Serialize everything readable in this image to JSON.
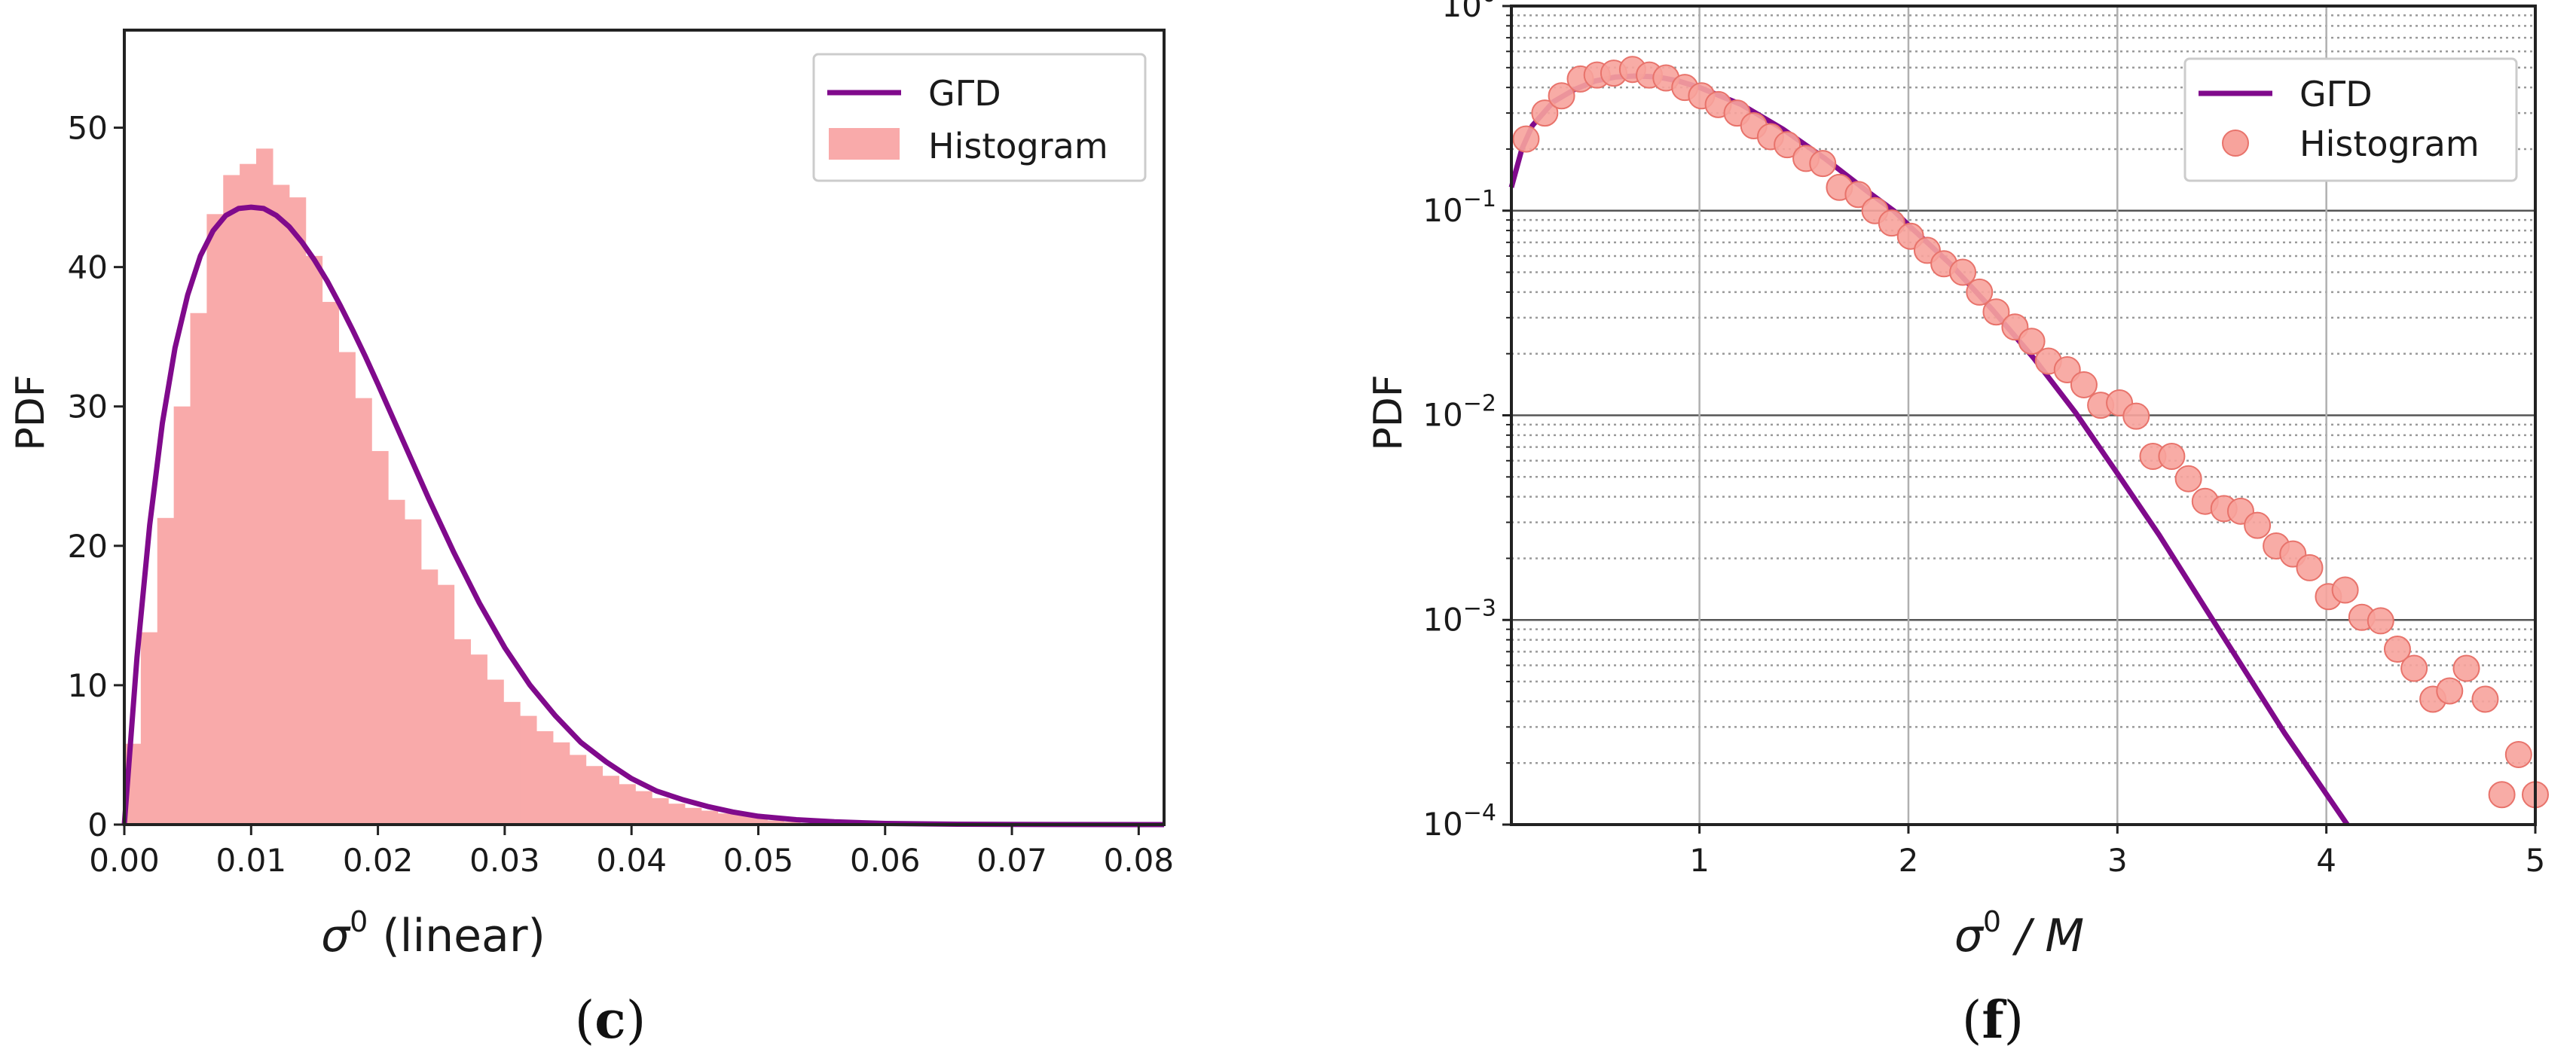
{
  "panels": {
    "left": {
      "label": "c",
      "ylabel": "PDF",
      "xlabel_symbol": "σ",
      "xlabel_sup": "0",
      "xlabel_rest": " (linear)",
      "yticks": [
        "0",
        "10",
        "20",
        "30",
        "40",
        "50"
      ],
      "xticks": [
        "0.00",
        "0.01",
        "0.02",
        "0.03",
        "0.04",
        "0.05",
        "0.06",
        "0.07",
        "0.08"
      ],
      "legend": {
        "line": "GΓD",
        "patch": "Histogram"
      }
    },
    "right": {
      "label": "f",
      "ylabel": "PDF",
      "xlabel_symbol": "σ",
      "xlabel_sup": "0",
      "xlabel_rest": " / M",
      "yticks_base": "10",
      "yticks_exp": [
        "0",
        "−1",
        "−2",
        "−3",
        "−4"
      ],
      "xticks": [
        "1",
        "2",
        "3",
        "4",
        "5"
      ],
      "legend": {
        "line": "GΓD",
        "marker": "Histogram"
      }
    }
  },
  "colors": {
    "curve": "#800a8c",
    "histogram_fill": "#f9aaaa",
    "marker_fill": "#f7a39c",
    "marker_edge": "#e8736b",
    "axis": "#222222",
    "grid_major": "#b0b0b0",
    "grid_minor": "#9a9a9a"
  },
  "chart_data": [
    {
      "type": "bar",
      "title": "(c)",
      "xlabel": "σ0 (linear)",
      "ylabel": "PDF",
      "xlim": [
        0.0,
        0.082
      ],
      "ylim": [
        0,
        57
      ],
      "grid": false,
      "legend_position": "upper right",
      "bin_width": 0.0013,
      "bin_start": 0.0,
      "histogram_values": [
        5.8,
        13.8,
        22.0,
        30.0,
        36.7,
        43.8,
        46.6,
        47.4,
        48.5,
        45.9,
        45.0,
        40.8,
        37.5,
        33.9,
        30.6,
        26.8,
        23.3,
        21.9,
        18.3,
        17.2,
        13.3,
        12.2,
        10.4,
        8.8,
        7.8,
        6.7,
        5.9,
        5.0,
        4.2,
        3.5,
        2.9,
        2.4,
        1.9,
        1.5,
        1.2,
        1.0,
        0.8,
        0.7,
        0.5,
        0.3,
        0.2,
        0.1,
        0.05
      ],
      "series": [
        {
          "name": "GΓD",
          "kind": "line",
          "x": [
            0.0,
            0.001,
            0.002,
            0.003,
            0.004,
            0.005,
            0.006,
            0.007,
            0.008,
            0.009,
            0.01,
            0.011,
            0.012,
            0.013,
            0.014,
            0.015,
            0.016,
            0.017,
            0.018,
            0.019,
            0.02,
            0.022,
            0.024,
            0.026,
            0.028,
            0.03,
            0.032,
            0.034,
            0.036,
            0.038,
            0.04,
            0.042,
            0.044,
            0.046,
            0.048,
            0.05,
            0.053,
            0.056,
            0.06,
            0.065,
            0.07,
            0.082
          ],
          "y": [
            0.0,
            12.0,
            21.5,
            28.8,
            34.2,
            38.0,
            40.8,
            42.6,
            43.7,
            44.2,
            44.3,
            44.2,
            43.7,
            42.9,
            41.8,
            40.5,
            39.0,
            37.3,
            35.5,
            33.6,
            31.6,
            27.5,
            23.4,
            19.5,
            15.9,
            12.7,
            10.0,
            7.8,
            5.9,
            4.5,
            3.3,
            2.4,
            1.8,
            1.3,
            0.9,
            0.6,
            0.35,
            0.2,
            0.08,
            0.03,
            0.01,
            0.0
          ]
        },
        {
          "name": "Histogram",
          "kind": "bar"
        }
      ]
    },
    {
      "type": "scatter",
      "title": "(f)",
      "xlabel": "σ0 / M",
      "ylabel": "PDF",
      "xlim": [
        0.1,
        5.0
      ],
      "ylim": [
        0.0001,
        1.0
      ],
      "yscale": "log",
      "grid": true,
      "legend_position": "upper right",
      "series": [
        {
          "name": "GΓD",
          "kind": "line",
          "x": [
            0.1,
            0.15,
            0.2,
            0.3,
            0.4,
            0.5,
            0.6,
            0.7,
            0.8,
            0.9,
            1.0,
            1.2,
            1.4,
            1.6,
            1.8,
            1.93,
            2.0,
            2.2,
            2.4,
            2.6,
            2.8,
            3.0,
            3.2,
            3.5,
            3.8,
            4.1
          ],
          "y": [
            0.13,
            0.2,
            0.26,
            0.34,
            0.39,
            0.43,
            0.45,
            0.455,
            0.45,
            0.43,
            0.4,
            0.33,
            0.25,
            0.18,
            0.125,
            0.1,
            0.085,
            0.055,
            0.033,
            0.019,
            0.0103,
            0.0052,
            0.0026,
            0.00085,
            0.00028,
            0.0001
          ]
        },
        {
          "name": "Histogram",
          "kind": "scatter",
          "x": [
            0.17,
            0.26,
            0.34,
            0.43,
            0.51,
            0.59,
            0.68,
            0.76,
            0.84,
            0.93,
            1.01,
            1.09,
            1.18,
            1.26,
            1.34,
            1.42,
            1.51,
            1.59,
            1.67,
            1.76,
            1.84,
            1.92,
            2.01,
            2.09,
            2.17,
            2.26,
            2.34,
            2.42,
            2.51,
            2.59,
            2.67,
            2.76,
            2.84,
            2.92,
            3.01,
            3.09,
            3.17,
            3.26,
            3.34,
            3.42,
            3.51,
            3.59,
            3.67,
            3.76,
            3.84,
            3.92,
            4.01,
            4.09,
            4.17,
            4.26,
            4.34,
            4.42,
            4.51,
            4.59,
            4.67,
            4.76,
            4.84,
            4.92,
            5.0
          ],
          "y": [
            0.224,
            0.3,
            0.364,
            0.44,
            0.46,
            0.47,
            0.49,
            0.46,
            0.445,
            0.4,
            0.364,
            0.33,
            0.3,
            0.26,
            0.23,
            0.21,
            0.18,
            0.17,
            0.13,
            0.12,
            0.1,
            0.087,
            0.075,
            0.064,
            0.055,
            0.05,
            0.04,
            0.032,
            0.027,
            0.023,
            0.0184,
            0.0167,
            0.0141,
            0.0112,
            0.0115,
            0.0099,
            0.0063,
            0.0063,
            0.0049,
            0.0038,
            0.0035,
            0.0034,
            0.0029,
            0.0023,
            0.0021,
            0.0018,
            0.0013,
            0.0014,
            0.00103,
            0.00099,
            0.00072,
            0.00058,
            0.00041,
            0.00045,
            0.00058,
            0.00041,
            0.00014,
            0.00022,
            0.00014
          ]
        }
      ]
    }
  ]
}
